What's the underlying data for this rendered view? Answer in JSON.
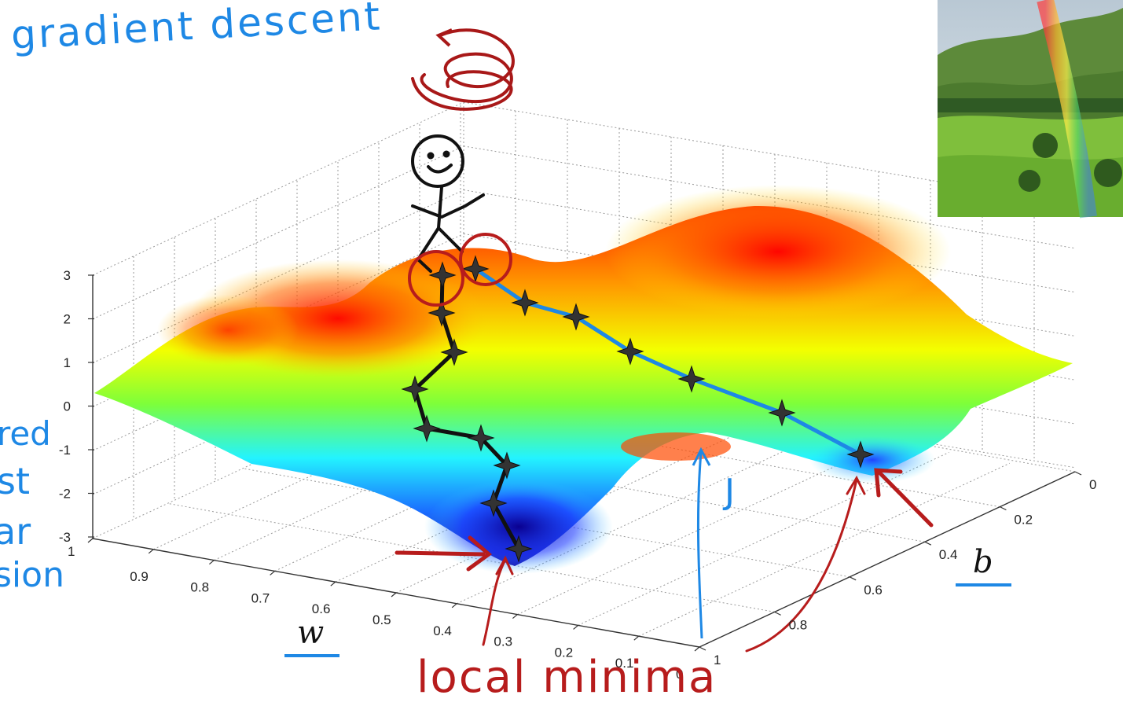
{
  "annotations": {
    "title": "gradient descent",
    "left_fragments": [
      "red",
      "st",
      "ar",
      "sion"
    ],
    "j_label": "J",
    "bottom_label": "local minima"
  },
  "chart_data": {
    "type": "surface",
    "title": "",
    "xlabel": "w",
    "ylabel": "b",
    "zlabel": "",
    "xlim": [
      0,
      1
    ],
    "ylim": [
      0,
      1
    ],
    "zlim": [
      -3,
      3
    ],
    "x_ticks": [
      "1",
      "0.9",
      "0.8",
      "0.7",
      "0.6",
      "0.5",
      "0.4",
      "0.3",
      "0.2",
      "0.1",
      "0"
    ],
    "y_ticks": [
      "0",
      "0.2",
      "0.4",
      "0.6",
      "0.8",
      "1"
    ],
    "z_ticks": [
      "3",
      "2",
      "1",
      "0",
      "-1",
      "-2",
      "-3"
    ],
    "grid": true,
    "colormap": [
      "#00008b",
      "#0000ff",
      "#00ffff",
      "#7fff00",
      "#ffff00",
      "#ff7f00",
      "#ff0000"
    ],
    "paths": [
      {
        "color": "#000000",
        "points_count": 9
      },
      {
        "color": "#1e88e5",
        "points_count": 8
      }
    ]
  },
  "inset": {
    "description_icon": "landscape-photo"
  }
}
